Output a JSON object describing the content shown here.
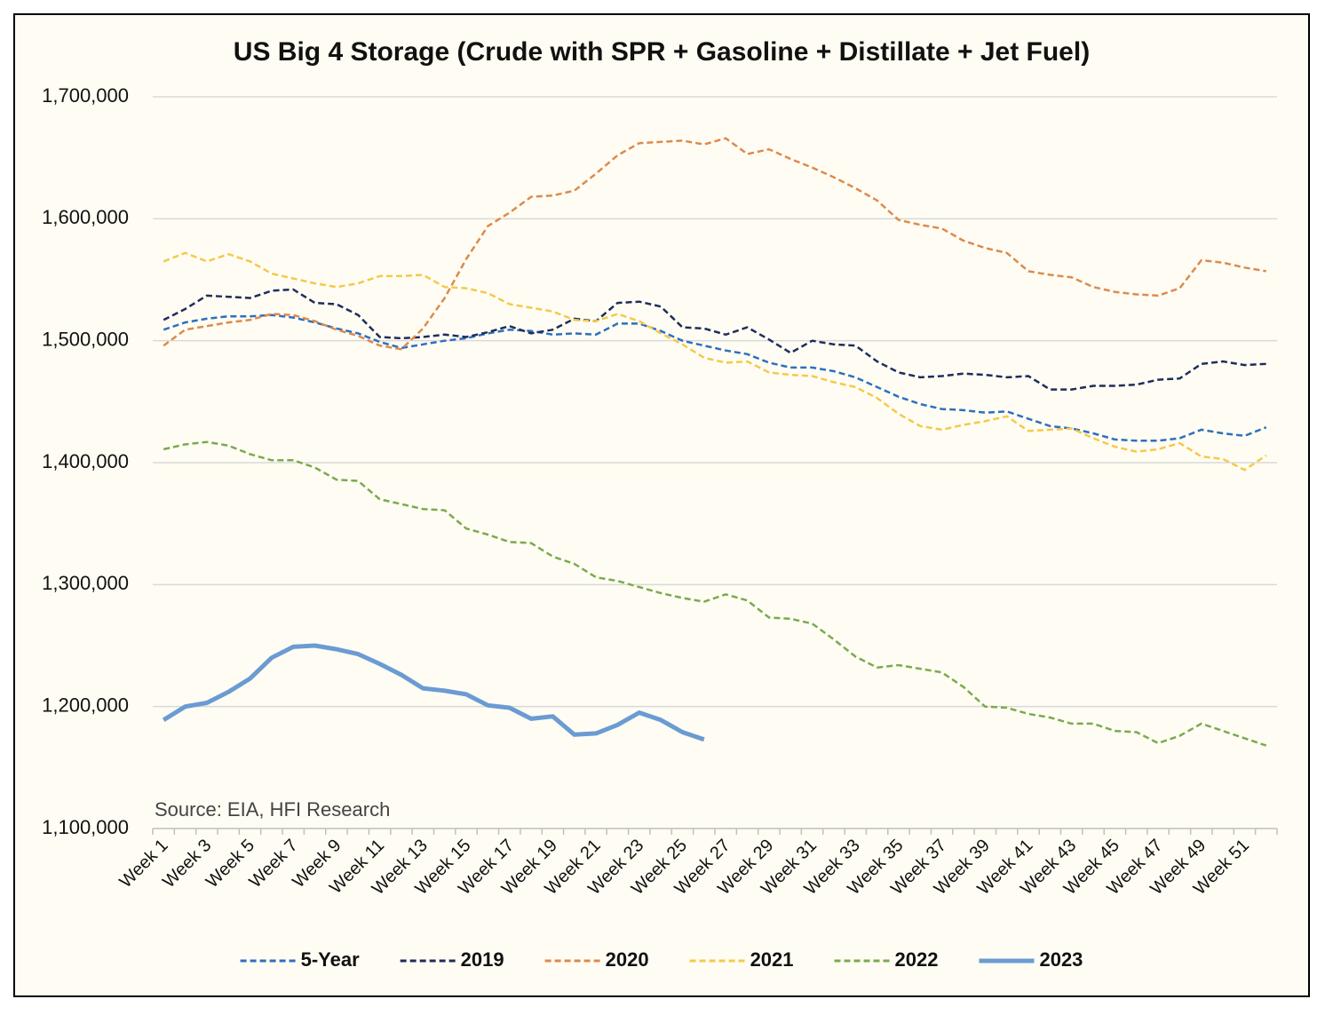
{
  "chart_data": {
    "type": "line",
    "title": "US Big 4 Storage (Crude with SPR + Gasoline + Distillate + Jet Fuel)",
    "annotation": "Source: EIA, HFI Research",
    "categories": [
      "Week 1",
      null,
      "Week 3",
      null,
      "Week 5",
      null,
      "Week 7",
      null,
      "Week 9",
      null,
      "Week 11",
      null,
      "Week 13",
      null,
      "Week 15",
      null,
      "Week 17",
      null,
      "Week 19",
      null,
      "Week 21",
      null,
      "Week 23",
      null,
      "Week 25",
      null,
      "Week 27",
      null,
      "Week 29",
      null,
      "Week 31",
      null,
      "Week 33",
      null,
      "Week 35",
      null,
      "Week 37",
      null,
      "Week 39",
      null,
      "Week 41",
      null,
      "Week 43",
      null,
      "Week 45",
      null,
      "Week 47",
      null,
      "Week 49",
      null,
      "Week 51",
      null
    ],
    "ylim": [
      1100000,
      1700000
    ],
    "yticks": [
      {
        "value": 1100000,
        "label": "1,100,000"
      },
      {
        "value": 1200000,
        "label": "1,200,000"
      },
      {
        "value": 1300000,
        "label": "1,300,000"
      },
      {
        "value": 1400000,
        "label": "1,400,000"
      },
      {
        "value": 1500000,
        "label": "1,500,000"
      },
      {
        "value": 1600000,
        "label": "1,600,000"
      },
      {
        "value": 1700000,
        "label": "1,700,000"
      }
    ],
    "grid": true,
    "legend": "bottom",
    "series": [
      {
        "name": "5-Year",
        "color": "#2e6fbf",
        "style": "dashed",
        "values": [
          1509000,
          1515000,
          1518000,
          1520000,
          1520000,
          1521000,
          1519000,
          1515000,
          1510000,
          1506000,
          1499000,
          1494000,
          1497000,
          1500000,
          1502000,
          1506000,
          1509000,
          1508000,
          1505000,
          1506000,
          1505000,
          1514000,
          1514000,
          1508000,
          1500000,
          1496000,
          1492000,
          1489000,
          1482000,
          1478000,
          1478000,
          1475000,
          1470000,
          1462000,
          1454000,
          1448000,
          1444000,
          1443000,
          1441000,
          1442000,
          1436000,
          1430000,
          1428000,
          1424000,
          1419000,
          1418000,
          1418000,
          1420000,
          1427000,
          1424000,
          1422000,
          1429000
        ]
      },
      {
        "name": "2019",
        "color": "#1f2d5c",
        "style": "dashed",
        "values": [
          1517000,
          1526000,
          1537000,
          1536000,
          1535000,
          1541000,
          1542000,
          1531000,
          1530000,
          1521000,
          1503000,
          1502000,
          1503000,
          1505000,
          1503000,
          1507000,
          1512000,
          1506000,
          1509000,
          1518000,
          1516000,
          1531000,
          1532000,
          1528000,
          1511000,
          1510000,
          1505000,
          1511000,
          1501000,
          1490000,
          1500000,
          1497000,
          1496000,
          1483000,
          1474000,
          1470000,
          1471000,
          1473000,
          1472000,
          1470000,
          1471000,
          1460000,
          1460000,
          1463000,
          1463000,
          1464000,
          1468000,
          1469000,
          1481000,
          1483000,
          1480000,
          1481000
        ]
      },
      {
        "name": "2020",
        "color": "#dd8a4e",
        "style": "dashed",
        "values": [
          1496000,
          1509000,
          1512000,
          1515000,
          1517000,
          1522000,
          1521000,
          1516000,
          1509000,
          1504000,
          1496000,
          1493000,
          1510000,
          1535000,
          1567000,
          1594000,
          1605000,
          1618000,
          1619000,
          1623000,
          1637000,
          1652000,
          1662000,
          1663000,
          1664000,
          1661000,
          1666000,
          1653000,
          1657000,
          1649000,
          1642000,
          1634000,
          1625000,
          1615000,
          1599000,
          1595000,
          1592000,
          1582000,
          1576000,
          1572000,
          1557000,
          1554000,
          1552000,
          1544000,
          1540000,
          1538000,
          1537000,
          1543000,
          1566000,
          1564000,
          1560000,
          1557000
        ]
      },
      {
        "name": "2021",
        "color": "#f4c94c",
        "style": "dashed",
        "values": [
          1565000,
          1572000,
          1565000,
          1571000,
          1565000,
          1555000,
          1551000,
          1547000,
          1544000,
          1547000,
          1553000,
          1553000,
          1554000,
          1544000,
          1543000,
          1539000,
          1530000,
          1527000,
          1524000,
          1517000,
          1516000,
          1522000,
          1516000,
          1506000,
          1497000,
          1486000,
          1482000,
          1483000,
          1474000,
          1472000,
          1471000,
          1466000,
          1462000,
          1453000,
          1440000,
          1430000,
          1427000,
          1431000,
          1434000,
          1438000,
          1426000,
          1427000,
          1428000,
          1420000,
          1413000,
          1409000,
          1411000,
          1416000,
          1405000,
          1403000,
          1394000,
          1406000
        ]
      },
      {
        "name": "2022",
        "color": "#7aaa4f",
        "style": "dashed",
        "values": [
          1411000,
          1415000,
          1417000,
          1414000,
          1407000,
          1402000,
          1402000,
          1396000,
          1386000,
          1385000,
          1370000,
          1366000,
          1362000,
          1361000,
          1346000,
          1341000,
          1335000,
          1334000,
          1323000,
          1317000,
          1306000,
          1303000,
          1298000,
          1293000,
          1289000,
          1286000,
          1292000,
          1287000,
          1273000,
          1272000,
          1268000,
          1255000,
          1241000,
          1232000,
          1234000,
          1231000,
          1228000,
          1216000,
          1200000,
          1199000,
          1194000,
          1191000,
          1186000,
          1186000,
          1180000,
          1179000,
          1170000,
          1176000,
          1186000,
          1180000,
          1174000,
          1168000
        ]
      },
      {
        "name": "2023",
        "color": "#6b9bd3",
        "style": "solid",
        "values": [
          1189000,
          1200000,
          1203000,
          1212000,
          1223000,
          1240000,
          1249000,
          1250000,
          1247000,
          1243000,
          1235000,
          1226000,
          1215000,
          1213000,
          1210000,
          1201000,
          1199000,
          1190000,
          1192000,
          1177000,
          1178000,
          1185000,
          1195000,
          1189000,
          1179000,
          1173000,
          null,
          null,
          null,
          null,
          null,
          null,
          null,
          null,
          null,
          null,
          null,
          null,
          null,
          null,
          null,
          null,
          null,
          null,
          null,
          null,
          null,
          null,
          null,
          null,
          null,
          null
        ]
      }
    ]
  }
}
